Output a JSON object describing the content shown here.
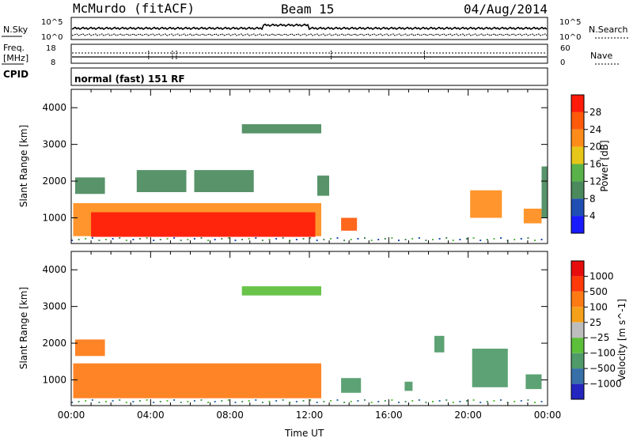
{
  "header": {
    "station": "McMurdo (fitACF)",
    "beam": "Beam 15",
    "date": "04/Aug/2014"
  },
  "noise_panel": {
    "left_label": "N.Sky",
    "right_label": "N.Search",
    "left_ticks": [
      "10^5",
      "10^0"
    ],
    "right_ticks": [
      "10^5",
      "10^0"
    ]
  },
  "freq_panel": {
    "left_label": "Freq.",
    "left_unit": "[MHz]",
    "right_label": "Nave",
    "left_ticks": [
      "18",
      "8"
    ],
    "right_ticks": [
      "60",
      "0"
    ]
  },
  "cpid_panel": {
    "label": "CPID",
    "text": "normal (fast) 151 RF"
  },
  "colors": {
    "power": [
      "#1a1aff",
      "#1f4fb3",
      "#4a8a5c",
      "#5ab34a",
      "#e6c619",
      "#ff8c1a",
      "#ff5a0a",
      "#ff1a0a"
    ],
    "velocity": [
      "#2525c0",
      "#3770a8",
      "#4f9a68",
      "#5cbf3a",
      "#bdbdbd",
      "#f5a01a",
      "#ff7a14",
      "#ff3a0a",
      "#e80d0d"
    ]
  },
  "chart_data": [
    {
      "type": "heatmap",
      "title": "Power",
      "ylabel": "Slant Range [km]",
      "xlabel": "",
      "ylim": [
        300,
        4500
      ],
      "yticks": [
        "4000",
        "3000",
        "2000",
        "1000"
      ],
      "colorbar": {
        "label": "Power [dB]",
        "ticks": [
          "28",
          "24",
          "20",
          "16",
          "12",
          "8",
          "4"
        ],
        "bounds": [
          0,
          4,
          8,
          12,
          16,
          20,
          24,
          28,
          32
        ]
      },
      "regions": [
        {
          "x0": 0.1,
          "x1": 12.6,
          "y0": 500,
          "y1": 1400,
          "value": 20
        },
        {
          "x0": 1.0,
          "x1": 12.3,
          "y0": 480,
          "y1": 1150,
          "value": 30
        },
        {
          "x0": 0.2,
          "x1": 1.7,
          "y0": 1650,
          "y1": 2100,
          "value": 8
        },
        {
          "x0": 3.3,
          "x1": 5.8,
          "y0": 1700,
          "y1": 2300,
          "value": 10
        },
        {
          "x0": 6.2,
          "x1": 9.2,
          "y0": 1700,
          "y1": 2300,
          "value": 9
        },
        {
          "x0": 8.6,
          "x1": 12.6,
          "y0": 3300,
          "y1": 3550,
          "value": 9
        },
        {
          "x0": 12.4,
          "x1": 13.0,
          "y0": 1600,
          "y1": 2150,
          "value": 8
        },
        {
          "x0": 13.6,
          "x1": 14.4,
          "y0": 650,
          "y1": 1000,
          "value": 26
        },
        {
          "x0": 20.1,
          "x1": 21.7,
          "y0": 1000,
          "y1": 1750,
          "value": 20
        },
        {
          "x0": 22.8,
          "x1": 23.7,
          "y0": 850,
          "y1": 1250,
          "value": 22
        },
        {
          "x0": 23.7,
          "x1": 24.0,
          "y0": 1000,
          "y1": 2400,
          "value": 10
        }
      ]
    },
    {
      "type": "heatmap",
      "title": "Velocity",
      "ylabel": "Slant Range [km]",
      "xlabel": "Time UT",
      "ylim": [
        300,
        4500
      ],
      "xlim": [
        0,
        24
      ],
      "xticks": [
        "00:00",
        "04:00",
        "08:00",
        "12:00",
        "16:00",
        "20:00",
        "00:00"
      ],
      "yticks": [
        "4000",
        "3000",
        "2000",
        "1000"
      ],
      "colorbar": {
        "label": "Velocity [m s^-1]",
        "ticks": [
          "1000",
          "500",
          "100",
          "25",
          "−25",
          "−100",
          "−500",
          "−1000"
        ],
        "bounds": [
          -1500,
          -1000,
          -500,
          -100,
          -25,
          25,
          100,
          500,
          1000,
          1500
        ]
      },
      "regions": [
        {
          "x0": 0.1,
          "x1": 12.6,
          "y0": 500,
          "y1": 1450,
          "value": 150
        },
        {
          "x0": 0.2,
          "x1": 1.7,
          "y0": 1650,
          "y1": 2100,
          "value": 100
        },
        {
          "x0": 8.6,
          "x1": 12.6,
          "y0": 3300,
          "y1": 3550,
          "value": -60
        },
        {
          "x0": 13.6,
          "x1": 14.6,
          "y0": 650,
          "y1": 1050,
          "value": -300
        },
        {
          "x0": 16.8,
          "x1": 17.2,
          "y0": 700,
          "y1": 950,
          "value": -300
        },
        {
          "x0": 18.3,
          "x1": 18.8,
          "y0": 1750,
          "y1": 2200,
          "value": -300
        },
        {
          "x0": 20.2,
          "x1": 22.0,
          "y0": 800,
          "y1": 1850,
          "value": -400
        },
        {
          "x0": 22.9,
          "x1": 23.7,
          "y0": 750,
          "y1": 1150,
          "value": -400
        }
      ]
    }
  ]
}
